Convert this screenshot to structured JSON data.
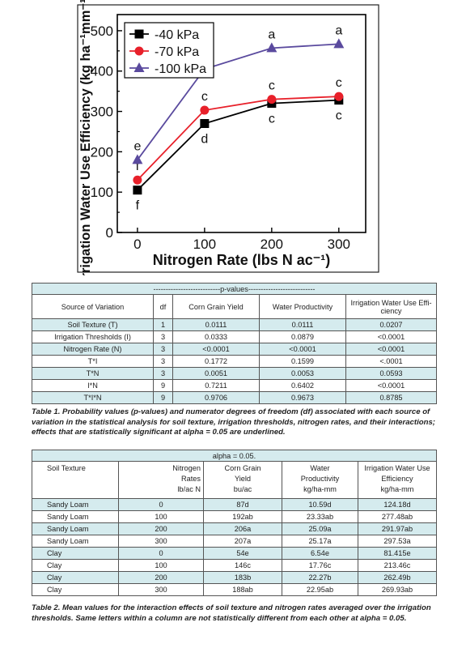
{
  "chart_data": {
    "type": "line",
    "xlabel": "Nitrogen Rate (lbs N ac⁻¹)",
    "ylabel": "Irrigation Water Use Efficiency (kg ha⁻¹mm⁻¹)",
    "x": [
      0,
      100,
      200,
      300
    ],
    "xticks": [
      "0",
      "100",
      "200",
      "300"
    ],
    "yticks": [
      "0",
      "100",
      "200",
      "300",
      "400",
      "500"
    ],
    "xlim": [
      -30,
      340
    ],
    "ylim": [
      0,
      540
    ],
    "legend_position": "top-left",
    "series": [
      {
        "name": "-40 kPa",
        "marker": "square",
        "color": "#000000",
        "values": [
          105,
          270,
          320,
          328
        ],
        "labels": [
          "f",
          "d",
          "c",
          "c"
        ],
        "label_position": "below"
      },
      {
        "name": "-70 kPa",
        "marker": "circle",
        "color": "#e8202a",
        "values": [
          130,
          303,
          330,
          337
        ],
        "labels": [
          "f",
          "c",
          "c",
          "c"
        ],
        "label_position": "above"
      },
      {
        "name": "-100 kPa",
        "marker": "triangle",
        "color": "#5a4a9e",
        "values": [
          180,
          405,
          457,
          467
        ],
        "labels": [
          "e",
          "b",
          "a",
          "a"
        ],
        "label_position": "above"
      }
    ]
  },
  "table1": {
    "title": "---------------------------p-values---------------------------",
    "headers": [
      "Source of Variation",
      "df",
      "Corn Grain Yield",
      "Water Productivity",
      "Irrigation Water Use Effi-ciency"
    ],
    "header_last_line1": "Irrigation Water Use Effi-",
    "header_last_line2": "ciency",
    "rows": [
      [
        "Soil Texture (T)",
        "1",
        "0.0111",
        "0.0111",
        "0.0207"
      ],
      [
        "Irrigation Thresholds (I)",
        "3",
        "0.0333",
        "0.0879",
        "<0.0001"
      ],
      [
        "Nitrogen Rate (N)",
        "3",
        "<0.0001",
        "<0.0001",
        "<0.0001"
      ],
      [
        "T*I",
        "3",
        "0.1772",
        "0.1599",
        "<.0001"
      ],
      [
        "T*N",
        "3",
        "0.0051",
        "0.0053",
        "0.0593"
      ],
      [
        "I*N",
        "9",
        "0.7211",
        "0.6402",
        "<0.0001"
      ],
      [
        "T*I*N",
        "9",
        "0.9706",
        "0.9673",
        "0.8785"
      ]
    ],
    "caption_label": "Table 1.",
    "caption_text": " Probability values (p-values) and numerator degrees of freedom (df) associated with each source of variation in the statistical analysis for soil texture, irrigation thresholds, nitrogen rates, and their interactions; effects that are statistically significant at alpha = 0.05 are underlined."
  },
  "table2": {
    "title": "alpha = 0.05.",
    "headers": [
      [
        "Soil Texture"
      ],
      [
        "Nitrogen",
        "Rates",
        "lb/ac N"
      ],
      [
        "Corn Grain",
        "Yield",
        "bu/ac"
      ],
      [
        "Water",
        "Productivity",
        "kg/ha-mm"
      ],
      [
        "Irrigation Water Use",
        "Efficiency",
        "kg/ha-mm"
      ]
    ],
    "rows": [
      [
        "Sandy Loam",
        "0",
        "87d",
        "10.59d",
        "124.18d"
      ],
      [
        "Sandy Loam",
        "100",
        "192ab",
        "23.33ab",
        "277.48ab"
      ],
      [
        "Sandy Loam",
        "200",
        "206a",
        "25.09a",
        "291.97ab"
      ],
      [
        "Sandy Loam",
        "300",
        "207a",
        "25.17a",
        "297.53a"
      ],
      [
        "Clay",
        "0",
        "54e",
        "6.54e",
        "81.415e"
      ],
      [
        "Clay",
        "100",
        "146c",
        "17.76c",
        "213.46c"
      ],
      [
        "Clay",
        "200",
        "183b",
        "22.27b",
        "262.49b"
      ],
      [
        "Clay",
        "300",
        "188ab",
        "22.95ab",
        "269.93ab"
      ]
    ],
    "caption_label": "Table 2.",
    "caption_text": " Mean values for the interaction effects of soil texture and nitrogen rates averaged over the irrigation thresholds. Same letters within a column are not statistically different from each other at alpha = 0.05."
  }
}
